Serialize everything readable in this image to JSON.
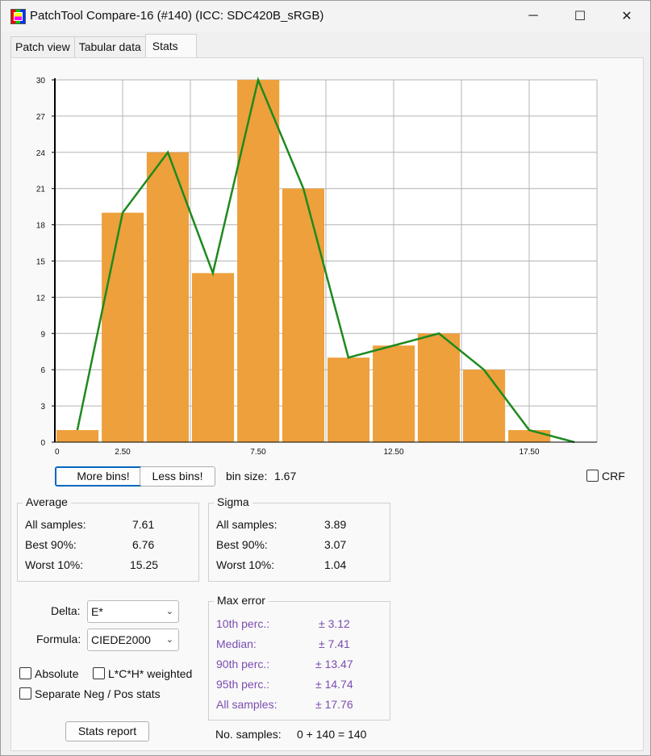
{
  "window": {
    "title": "PatchTool Compare-16 (#140) (ICC: SDC420B_sRGB)",
    "minimize": "─",
    "maximize": "☐",
    "close": "✕"
  },
  "tabs": [
    {
      "label": "Patch view"
    },
    {
      "label": "Tabular data"
    },
    {
      "label": "Stats"
    }
  ],
  "chart_data": {
    "type": "bar",
    "bin_starts": [
      0,
      1.67,
      3.33,
      5.0,
      6.67,
      8.33,
      10.0,
      11.67,
      13.33,
      15.0,
      16.67
    ],
    "bin_width": 1.67,
    "values": [
      1,
      19,
      24,
      14,
      30,
      21,
      7,
      8,
      9,
      6,
      1
    ],
    "line": {
      "x": [
        0.83,
        2.5,
        4.17,
        5.83,
        7.5,
        9.17,
        10.83,
        12.5,
        14.17,
        15.83,
        17.5,
        19.17
      ],
      "y": [
        1,
        19,
        24,
        14,
        30,
        21,
        7,
        8,
        9,
        6,
        1,
        0
      ]
    },
    "xlim": [
      0,
      20
    ],
    "ylim": [
      0,
      30
    ],
    "yticks": [
      "0",
      "3",
      "6",
      "9",
      "12",
      "15",
      "18",
      "21",
      "24",
      "27",
      "30"
    ],
    "xticks": [
      "0",
      "2.50",
      "7.50",
      "12.50",
      "17.50"
    ],
    "bar_color": "#eda03c",
    "line_color": "#1e8a1e",
    "grid": true
  },
  "controls": {
    "more_bins": "More bins!",
    "less_bins": "Less bins!",
    "bin_size_label": "bin size:",
    "bin_size_value": "1.67",
    "crf_label": "CRF"
  },
  "average": {
    "title": "Average",
    "rows": [
      {
        "label": "All samples:",
        "value": "7.61"
      },
      {
        "label": "Best 90%:",
        "value": "6.76"
      },
      {
        "label": "Worst 10%:",
        "value": "15.25"
      }
    ]
  },
  "sigma": {
    "title": "Sigma",
    "rows": [
      {
        "label": "All samples:",
        "value": "3.89"
      },
      {
        "label": "Best 90%:",
        "value": "3.07"
      },
      {
        "label": "Worst 10%:",
        "value": "1.04"
      }
    ]
  },
  "delta": {
    "label": "Delta:",
    "value": "E*"
  },
  "formula": {
    "label": "Formula:",
    "value": "CIEDE2000"
  },
  "options": {
    "absolute": "Absolute",
    "lch_weighted": "L*C*H* weighted",
    "separate": "Separate Neg / Pos stats"
  },
  "max_error": {
    "title": "Max error",
    "rows": [
      {
        "label": "10th perc.:",
        "value": "± 3.12"
      },
      {
        "label": "Median:",
        "value": "± 7.41"
      },
      {
        "label": "90th perc.:",
        "value": "± 13.47"
      },
      {
        "label": "95th perc.:",
        "value": "± 14.74"
      },
      {
        "label": "All samples:",
        "value": "± 17.76"
      }
    ]
  },
  "stats_report": "Stats report",
  "samples": {
    "label": "No. samples:",
    "value": "0 + 140 = 140"
  }
}
